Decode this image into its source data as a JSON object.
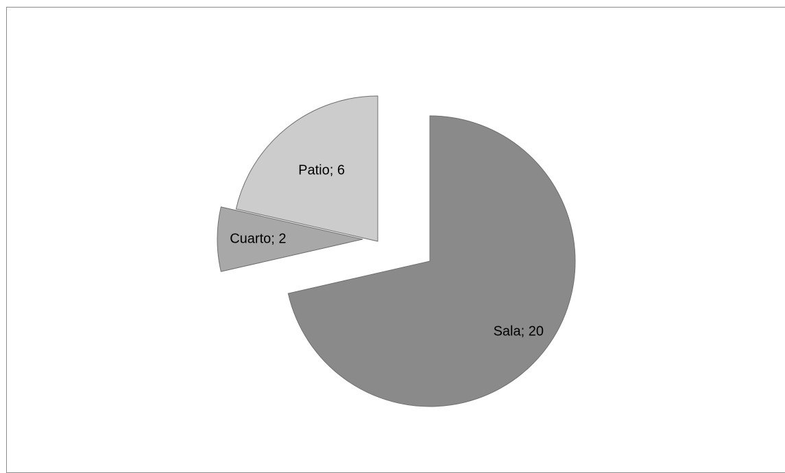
{
  "chart_data": {
    "type": "pie",
    "title": "",
    "legend": "none",
    "exploded": true,
    "slices": [
      {
        "name": "Sala",
        "value": 20,
        "label": "Sala; 20",
        "color": "#8a8a8a"
      },
      {
        "name": "Cuarto",
        "value": 2,
        "label": "Cuarto; 2",
        "color": "#a8a8a8"
      },
      {
        "name": "Patio",
        "value": 6,
        "label": "Patio; 6",
        "color": "#cccccc"
      }
    ]
  }
}
